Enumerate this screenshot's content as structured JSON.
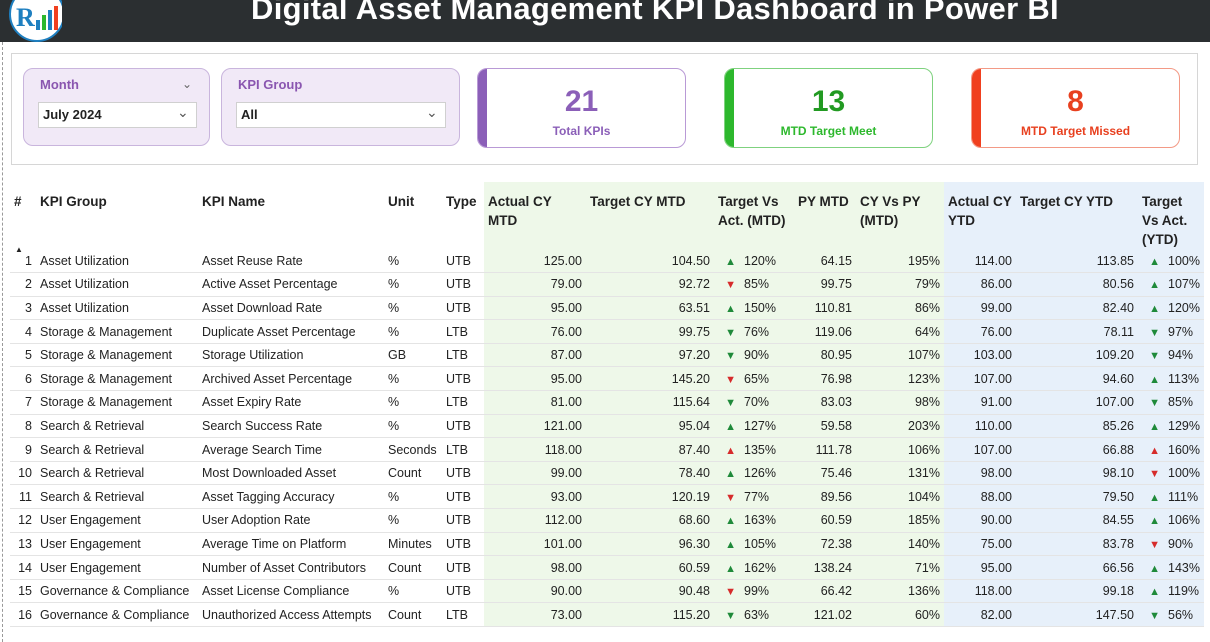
{
  "header": {
    "title": "Digital Asset Management KPI Dashboard in Power BI"
  },
  "filters": {
    "month": {
      "label": "Month",
      "value": "July 2024"
    },
    "kpi_group": {
      "label": "KPI Group",
      "value": "All"
    }
  },
  "cards": [
    {
      "value": "21",
      "caption": "Total KPIs",
      "color": "#8b5fb8"
    },
    {
      "value": "13",
      "caption": "MTD Target Meet",
      "color": "#2db82d"
    },
    {
      "value": "8",
      "caption": "MTD Target Missed",
      "color": "#f0401f"
    }
  ],
  "table": {
    "headers": [
      "#",
      "KPI Group",
      "KPI Name",
      "Unit",
      "Type",
      "Actual CY MTD",
      "Target CY MTD",
      "Target Vs Act. (MTD)",
      "PY MTD",
      "CY Vs PY (MTD)",
      "Actual CY YTD",
      "Target CY YTD",
      "Target Vs Act. (YTD)"
    ],
    "rows": [
      [
        "1",
        "Asset Utilization",
        "Asset Reuse Rate",
        "%",
        "UTB",
        "125.00",
        "104.50",
        "up",
        "120%",
        "64.15",
        "195%",
        "114.00",
        "113.85",
        "up",
        "100%"
      ],
      [
        "2",
        "Asset Utilization",
        "Active Asset Percentage",
        "%",
        "UTB",
        "79.00",
        "92.72",
        "down",
        "85%",
        "99.75",
        "79%",
        "86.00",
        "80.56",
        "up",
        "107%"
      ],
      [
        "3",
        "Asset Utilization",
        "Asset Download Rate",
        "%",
        "UTB",
        "95.00",
        "63.51",
        "up",
        "150%",
        "110.81",
        "86%",
        "99.00",
        "82.40",
        "up",
        "120%"
      ],
      [
        "4",
        "Storage & Management",
        "Duplicate Asset Percentage",
        "%",
        "LTB",
        "76.00",
        "99.75",
        "down-good",
        "76%",
        "119.06",
        "64%",
        "76.00",
        "78.11",
        "down-good",
        "97%"
      ],
      [
        "5",
        "Storage & Management",
        "Storage Utilization",
        "GB",
        "LTB",
        "87.00",
        "97.20",
        "down-good",
        "90%",
        "80.95",
        "107%",
        "103.00",
        "109.20",
        "down-good",
        "94%"
      ],
      [
        "6",
        "Storage & Management",
        "Archived Asset Percentage",
        "%",
        "UTB",
        "95.00",
        "145.20",
        "down",
        "65%",
        "76.98",
        "123%",
        "107.00",
        "94.60",
        "up",
        "113%"
      ],
      [
        "7",
        "Storage & Management",
        "Asset Expiry Rate",
        "%",
        "LTB",
        "81.00",
        "115.64",
        "down-good",
        "70%",
        "83.03",
        "98%",
        "91.00",
        "107.00",
        "down-good",
        "85%"
      ],
      [
        "8",
        "Search & Retrieval",
        "Search Success Rate",
        "%",
        "UTB",
        "121.00",
        "95.04",
        "up",
        "127%",
        "59.58",
        "203%",
        "110.00",
        "85.26",
        "up",
        "129%"
      ],
      [
        "9",
        "Search & Retrieval",
        "Average Search Time",
        "Seconds",
        "LTB",
        "118.00",
        "87.40",
        "up-bad",
        "135%",
        "111.78",
        "106%",
        "107.00",
        "66.88",
        "up-bad",
        "160%"
      ],
      [
        "10",
        "Search & Retrieval",
        "Most Downloaded Asset",
        "Count",
        "UTB",
        "99.00",
        "78.40",
        "up",
        "126%",
        "75.46",
        "131%",
        "98.00",
        "98.10",
        "down",
        "100%"
      ],
      [
        "11",
        "Search & Retrieval",
        "Asset Tagging Accuracy",
        "%",
        "UTB",
        "93.00",
        "120.19",
        "down",
        "77%",
        "89.56",
        "104%",
        "88.00",
        "79.50",
        "up",
        "111%"
      ],
      [
        "12",
        "User Engagement",
        "User Adoption Rate",
        "%",
        "UTB",
        "112.00",
        "68.60",
        "up",
        "163%",
        "60.59",
        "185%",
        "90.00",
        "84.55",
        "up",
        "106%"
      ],
      [
        "13",
        "User Engagement",
        "Average Time on Platform",
        "Minutes",
        "UTB",
        "101.00",
        "96.30",
        "up",
        "105%",
        "72.38",
        "140%",
        "75.00",
        "83.78",
        "down",
        "90%"
      ],
      [
        "14",
        "User Engagement",
        "Number of Asset Contributors",
        "Count",
        "UTB",
        "98.00",
        "60.59",
        "up",
        "162%",
        "138.24",
        "71%",
        "95.00",
        "66.56",
        "up",
        "143%"
      ],
      [
        "15",
        "Governance & Compliance",
        "Asset License Compliance",
        "%",
        "UTB",
        "90.00",
        "90.48",
        "down",
        "99%",
        "66.42",
        "136%",
        "118.00",
        "99.18",
        "up",
        "119%"
      ],
      [
        "16",
        "Governance & Compliance",
        "Unauthorized Access Attempts",
        "Count",
        "LTB",
        "73.00",
        "115.20",
        "down-good",
        "63%",
        "121.02",
        "60%",
        "82.00",
        "147.50",
        "down-good",
        "56%"
      ]
    ]
  }
}
